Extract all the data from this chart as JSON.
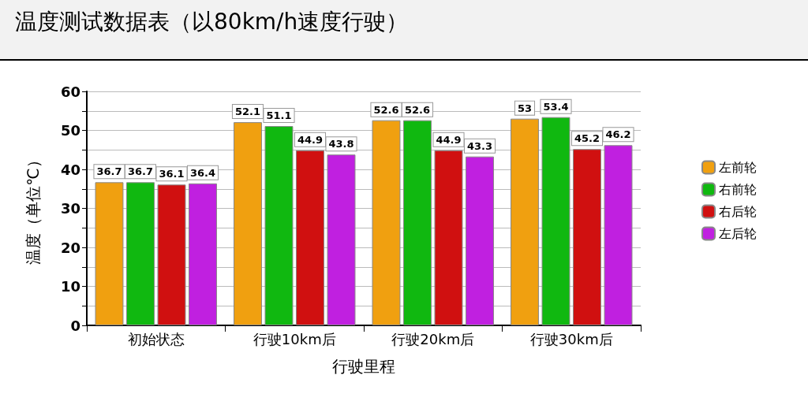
{
  "chart_data": {
    "type": "bar",
    "title": "温度测试数据表（以80km/h速度行驶）",
    "xlabel": "行驶里程",
    "ylabel": "温度（单位℃）",
    "categories": [
      "初始状态",
      "行驶10km后",
      "行驶20km后",
      "行驶30km后"
    ],
    "series": [
      {
        "name": "左前轮",
        "color": "#f0a010",
        "values": [
          36.7,
          52.1,
          52.6,
          53
        ]
      },
      {
        "name": "右前轮",
        "color": "#10b810",
        "values": [
          36.7,
          51.1,
          52.6,
          53.4
        ]
      },
      {
        "name": "右后轮",
        "color": "#d01010",
        "values": [
          36.1,
          44.9,
          44.9,
          45.2
        ]
      },
      {
        "name": "左后轮",
        "color": "#c020e0",
        "values": [
          36.4,
          43.8,
          43.3,
          46.2
        ]
      }
    ],
    "ylim": [
      0,
      60
    ],
    "yticks": [
      0,
      {
        "value": 5,
        "label": null
      },
      10,
      {
        "value": 15,
        "label": null
      },
      20,
      {
        "value": 25,
        "label": null
      },
      30,
      {
        "value": 35,
        "label": null
      },
      40,
      {
        "value": 45,
        "label": null
      },
      50,
      {
        "value": 55,
        "label": null
      },
      60
    ],
    "grid": "y",
    "legend": "right",
    "data_labels": true
  }
}
